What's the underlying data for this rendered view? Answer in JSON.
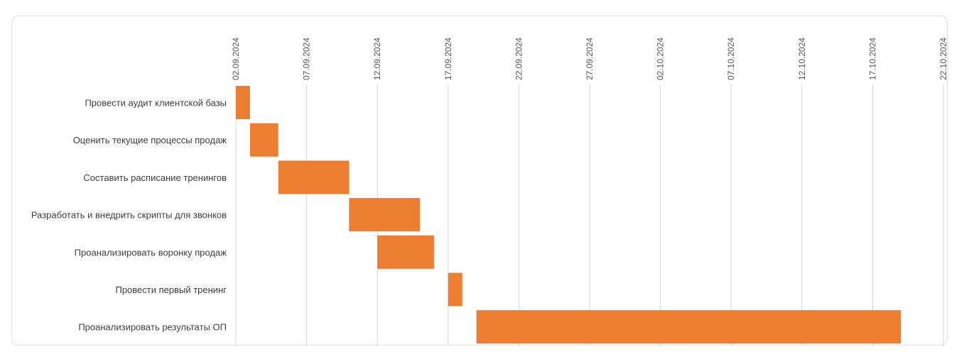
{
  "chart_data": {
    "type": "gantt",
    "title": "",
    "x_axis": {
      "type": "date",
      "min": "2024-09-02",
      "max": "2024-10-22",
      "ticks": [
        "02.09.2024",
        "07.09.2024",
        "12.09.2024",
        "17.09.2024",
        "22.09.2024",
        "27.09.2024",
        "02.10.2024",
        "07.10.2024",
        "12.10.2024",
        "17.10.2024",
        "22.10.2024"
      ],
      "tick_position": "top",
      "tick_rotation": "vertical"
    },
    "grid": true,
    "legend": "none",
    "bar_color": "#ed7d31",
    "tasks": [
      {
        "name": "Провести аудит клиентской базы",
        "start": "2024-09-02",
        "end": "2024-09-03"
      },
      {
        "name": "Оценить текущие процессы продаж",
        "start": "2024-09-03",
        "end": "2024-09-05"
      },
      {
        "name": "Составить расписание тренингов",
        "start": "2024-09-05",
        "end": "2024-09-10"
      },
      {
        "name": "Разработать и внедрить скрипты для звонков",
        "start": "2024-09-10",
        "end": "2024-09-15"
      },
      {
        "name": "Проанализировать воронку продаж",
        "start": "2024-09-12",
        "end": "2024-09-16"
      },
      {
        "name": "Провести первый тренинг",
        "start": "2024-09-17",
        "end": "2024-09-18"
      },
      {
        "name": "Проанализировать результаты ОП",
        "start": "2024-09-19",
        "end": "2024-10-19"
      }
    ]
  }
}
